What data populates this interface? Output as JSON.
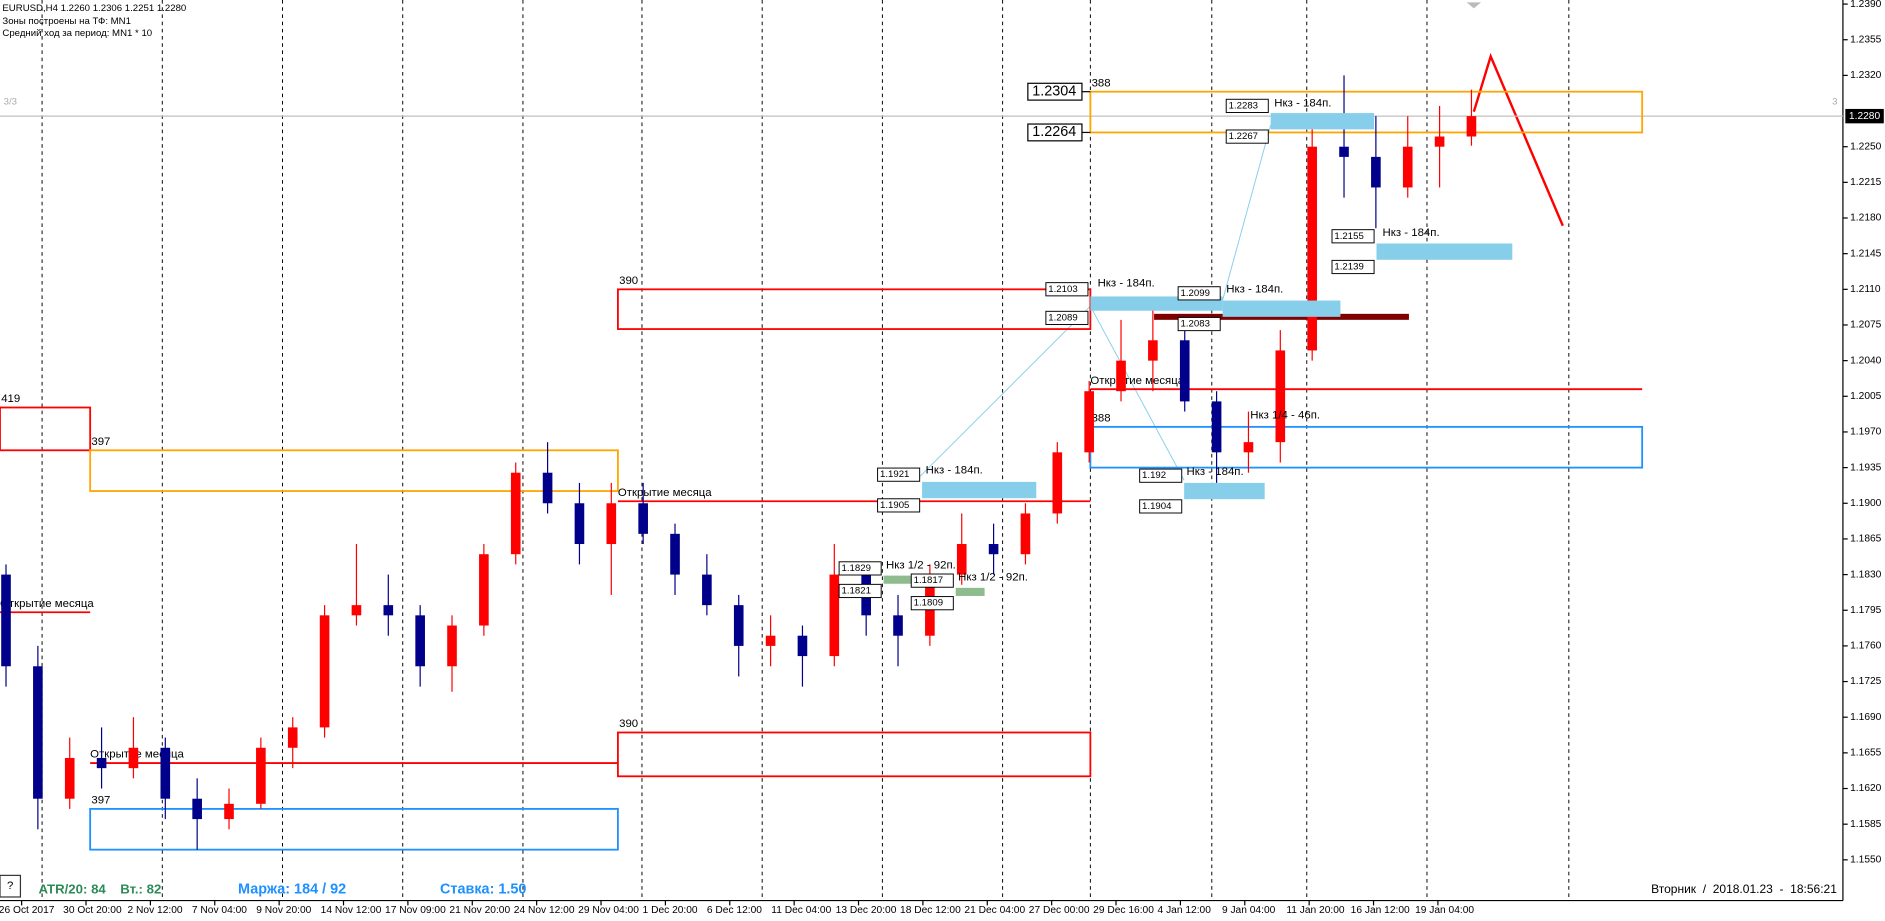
{
  "chart_data": {
    "type": "candlestick",
    "symbol_info": "EURUSD,H4  1.2260 1.2306 1.2251 1.2280",
    "info_lines": [
      "Зоны построены на ТФ: MN1",
      "Средний ход за период: MN1 * 10"
    ],
    "open": [
      1.183,
      1.174,
      1.161,
      1.165,
      1.164,
      1.166,
      1.161,
      1.159,
      1.1605,
      1.166,
      1.168,
      1.179,
      1.18,
      1.179,
      1.174,
      1.178,
      1.185,
      1.193,
      1.19,
      1.186,
      1.19,
      1.187,
      1.183,
      1.18,
      1.176,
      1.177,
      1.175,
      1.183,
      1.179,
      1.177,
      1.183,
      1.186,
      1.185,
      1.189,
      1.195,
      1.201,
      1.204,
      1.206,
      1.2,
      1.195,
      1.196,
      1.205,
      1.225,
      1.224,
      1.221,
      1.225,
      1.226
    ],
    "high": [
      1.184,
      1.176,
      1.167,
      1.168,
      1.169,
      1.167,
      1.163,
      1.162,
      1.167,
      1.169,
      1.18,
      1.186,
      1.183,
      1.18,
      1.179,
      1.186,
      1.194,
      1.196,
      1.192,
      1.192,
      1.192,
      1.188,
      1.185,
      1.181,
      1.179,
      1.178,
      1.186,
      1.184,
      1.181,
      1.184,
      1.189,
      1.188,
      1.19,
      1.196,
      1.202,
      1.208,
      1.209,
      1.207,
      1.201,
      1.199,
      1.207,
      1.227,
      1.232,
      1.228,
      1.228,
      1.229,
      1.2306
    ],
    "low": [
      1.172,
      1.158,
      1.16,
      1.162,
      1.163,
      1.159,
      1.156,
      1.158,
      1.16,
      1.164,
      1.167,
      1.178,
      1.177,
      1.172,
      1.1715,
      1.177,
      1.184,
      1.189,
      1.184,
      1.181,
      1.186,
      1.181,
      1.179,
      1.173,
      1.174,
      1.172,
      1.174,
      1.177,
      1.174,
      1.176,
      1.182,
      1.183,
      1.184,
      1.188,
      1.194,
      1.2,
      1.201,
      1.199,
      1.192,
      1.193,
      1.194,
      1.204,
      1.22,
      1.217,
      1.22,
      1.221,
      1.2251
    ],
    "close": [
      1.174,
      1.161,
      1.165,
      1.164,
      1.166,
      1.161,
      1.159,
      1.1605,
      1.166,
      1.168,
      1.179,
      1.18,
      1.179,
      1.174,
      1.178,
      1.185,
      1.193,
      1.19,
      1.186,
      1.19,
      1.187,
      1.183,
      1.18,
      1.176,
      1.177,
      1.175,
      1.183,
      1.179,
      1.177,
      1.183,
      1.186,
      1.185,
      1.189,
      1.195,
      1.201,
      1.204,
      1.206,
      1.2,
      1.195,
      1.196,
      1.205,
      1.225,
      1.224,
      1.221,
      1.225,
      1.226,
      1.228
    ],
    "up_color": "#ff0000",
    "down_color": "#00008b",
    "ylim": [
      1.151,
      1.2394
    ],
    "yticks": [
      {
        "value": 1.239,
        "label": "1.2390"
      },
      1.2355,
      {
        "value": 1.232,
        "label": "1.2320"
      },
      {
        "value": 1.225,
        "label": "1.2250"
      },
      1.2215,
      {
        "value": 1.218,
        "label": "1.2180"
      },
      1.2145,
      {
        "value": 1.211,
        "label": "1.2110"
      },
      1.2075,
      {
        "value": 1.204,
        "label": "1.2040"
      },
      1.2005,
      {
        "value": 1.197,
        "label": "1.1970"
      },
      1.1935,
      {
        "value": 1.19,
        "label": "1.1900"
      },
      1.1865,
      {
        "value": 1.183,
        "label": "1.1830"
      },
      1.1795,
      {
        "value": 1.176,
        "label": "1.1760"
      },
      1.1725,
      {
        "value": 1.169,
        "label": "1.1690"
      },
      1.1655,
      {
        "value": 1.162,
        "label": "1.1620"
      },
      1.1585,
      {
        "value": 1.155,
        "label": "1.1550"
      }
    ],
    "current_price": {
      "value": 1.228,
      "label": "1.2280"
    },
    "x_tick_labels": [
      "26 Oct 2017",
      "30 Oct 20:00",
      "2 Nov 12:00",
      "7 Nov 04:00",
      "9 Nov 20:00",
      "14 Nov 12:00",
      "17 Nov 09:00",
      "21 Nov 20:00",
      "24 Nov 12:00",
      "29 Nov 04:00",
      "1 Dec 20:00",
      "6 Dec 12:00",
      "11 Dec 04:00",
      "13 Dec 20:00",
      "18 Dec 12:00",
      "21 Dec 04:00",
      "27 Dec 00:00",
      "29 Dec 16:00",
      "4 Jan 12:00",
      "9 Jan 04:00",
      "11 Jan 20:00",
      "16 Jan 12:00",
      "19 Jan 04:00"
    ],
    "zones": [
      {
        "label": "388",
        "top": 1.2304,
        "bottom": 1.2264,
        "color": "#ffa500",
        "show_levels": true
      },
      {
        "label": "390",
        "top": 1.211,
        "bottom": 1.2071,
        "color": "#ff0000"
      },
      {
        "label": "388",
        "top": 1.1975,
        "bottom": 1.1935,
        "color": "#1e90ff"
      },
      {
        "label": "419",
        "top": 1.1994,
        "bottom": 1.1952,
        "color": "#ff0000"
      },
      {
        "label": "397",
        "top": 1.1952,
        "bottom": 1.1912,
        "color": "#ffa500"
      },
      {
        "label": "390",
        "top": 1.1675,
        "bottom": 1.1632,
        "color": "#ff0000"
      },
      {
        "label": "397",
        "top": 1.16,
        "bottom": 1.156,
        "color": "#1e90ff"
      }
    ],
    "month_open_lines": [
      {
        "label": "Открытие месяца",
        "value": 1.1793
      },
      {
        "label": "Открытие месяца",
        "value": 1.1645
      },
      {
        "label": "Открытие месяца",
        "value": 1.1902
      },
      {
        "label": "Открытие месяца",
        "value": 1.2012
      }
    ],
    "month_open_color": "#ff0000",
    "targets": [
      {
        "text": "Нкз - 184п.",
        "high": 1.2283,
        "low": 1.2267,
        "color": "#87ceeb"
      },
      {
        "text": "Нкз - 184п.",
        "high": 1.2155,
        "low": 1.2139,
        "color": "#87ceeb"
      },
      {
        "text": "Нкз - 184п.",
        "high": 1.2103,
        "low": 1.2089,
        "color": "#87ceeb"
      },
      {
        "text": "Нкз - 184п.",
        "high": 1.2099,
        "low": 1.2083,
        "color": "#87ceeb"
      },
      {
        "text": "Нкз - 184п.",
        "high": 1.1921,
        "low": 1.1905,
        "color": "#87ceeb"
      },
      {
        "text": "Нкз - 184п.",
        "high": 1.192,
        "low": 1.1904,
        "color": "#87ceeb"
      },
      {
        "text": "Нкз 1/2 - 92п.",
        "high": 1.1829,
        "low": 1.1821,
        "color": "#8fbc8f"
      },
      {
        "text": "Нкз 1/2 - 92п.",
        "high": 1.1817,
        "low": 1.1809,
        "color": "#8fbc8f"
      }
    ],
    "bar_levels": [
      {
        "value": 1.2083,
        "color": "#7f0000"
      }
    ],
    "notes": [
      "Нкз 1/4 - 46п."
    ],
    "page_marker_left": "3/3",
    "page_marker_right": "3",
    "footer": {
      "atr": "ATR/20: 84",
      "tue": "Вт.: 82",
      "margin": "Маржа: 184 / 92",
      "rate": "Ставка: 1.50",
      "datetime": "Вторник  /  2018.01.23  -  18:56:21"
    },
    "help_button": "?"
  }
}
